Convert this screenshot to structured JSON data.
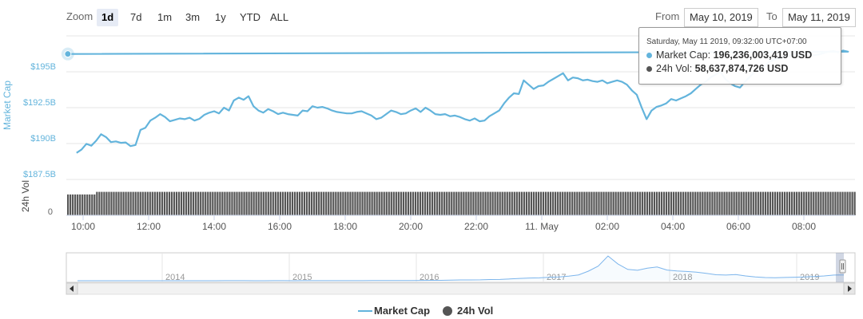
{
  "rangeSelector": {
    "zoom_label": "Zoom",
    "buttons": [
      "1d",
      "7d",
      "1m",
      "3m",
      "1y",
      "YTD",
      "ALL"
    ],
    "active": "1d",
    "from_label": "From",
    "from_value": "May 10, 2019",
    "to_label": "To",
    "to_value": "May 11, 2019"
  },
  "tooltip": {
    "date": "Saturday, May 11 2019, 09:32:00 UTC+07:00",
    "market_cap_label": "Market Cap:",
    "market_cap_value": "196,236,003,419 USD",
    "vol_label": "24h Vol:",
    "vol_value": "58,637,874,726 USD"
  },
  "legend": {
    "market_cap": "Market Cap",
    "vol": "24h Vol"
  },
  "colors": {
    "market_cap": "#63b4dc",
    "vol": "#555555",
    "grid": "#e6e6e6",
    "accent": "#7cb5ec"
  },
  "chart_data": {
    "type": "line",
    "title": "",
    "series": [
      {
        "name": "Market Cap",
        "axis": "market_cap",
        "points": [
          [
            "09:48",
            189.35
          ],
          [
            "09:57",
            189.58
          ],
          [
            "10:06",
            189.98
          ],
          [
            "10:15",
            189.85
          ],
          [
            "10:24",
            190.2
          ],
          [
            "10:33",
            190.65
          ],
          [
            "10:42",
            190.45
          ],
          [
            "10:51",
            190.1
          ],
          [
            "11:00",
            190.15
          ],
          [
            "11:09",
            190.05
          ],
          [
            "11:18",
            190.08
          ],
          [
            "11:27",
            189.82
          ],
          [
            "11:36",
            189.9
          ],
          [
            "11:45",
            190.95
          ],
          [
            "11:54",
            191.1
          ],
          [
            "12:03",
            191.6
          ],
          [
            "12:12",
            191.8
          ],
          [
            "12:21",
            192.05
          ],
          [
            "12:30",
            191.85
          ],
          [
            "12:39",
            191.55
          ],
          [
            "12:48",
            191.65
          ],
          [
            "12:57",
            191.75
          ],
          [
            "13:06",
            191.7
          ],
          [
            "13:15",
            191.8
          ],
          [
            "13:24",
            191.6
          ],
          [
            "13:33",
            191.72
          ],
          [
            "13:42",
            192.0
          ],
          [
            "13:51",
            192.15
          ],
          [
            "14:00",
            192.25
          ],
          [
            "14:09",
            192.1
          ],
          [
            "14:18",
            192.5
          ],
          [
            "14:27",
            192.3
          ],
          [
            "14:36",
            193.0
          ],
          [
            "14:45",
            193.2
          ],
          [
            "14:54",
            193.05
          ],
          [
            "15:03",
            193.3
          ],
          [
            "15:12",
            192.6
          ],
          [
            "15:21",
            192.3
          ],
          [
            "15:30",
            192.15
          ],
          [
            "15:39",
            192.4
          ],
          [
            "15:48",
            192.25
          ],
          [
            "15:57",
            192.05
          ],
          [
            "16:06",
            192.15
          ],
          [
            "16:15",
            192.05
          ],
          [
            "16:24",
            192.0
          ],
          [
            "16:33",
            191.95
          ],
          [
            "16:42",
            192.3
          ],
          [
            "16:51",
            192.25
          ],
          [
            "17:00",
            192.6
          ],
          [
            "17:09",
            192.5
          ],
          [
            "17:18",
            192.55
          ],
          [
            "17:27",
            192.45
          ],
          [
            "17:36",
            192.3
          ],
          [
            "17:45",
            192.2
          ],
          [
            "17:54",
            192.15
          ],
          [
            "18:03",
            192.1
          ],
          [
            "18:12",
            192.1
          ],
          [
            "18:21",
            192.2
          ],
          [
            "18:30",
            192.25
          ],
          [
            "18:39",
            192.1
          ],
          [
            "18:48",
            191.95
          ],
          [
            "18:57",
            191.7
          ],
          [
            "19:06",
            191.8
          ],
          [
            "19:15",
            192.05
          ],
          [
            "19:24",
            192.3
          ],
          [
            "19:33",
            192.2
          ],
          [
            "19:42",
            192.05
          ],
          [
            "19:51",
            192.1
          ],
          [
            "20:00",
            192.3
          ],
          [
            "20:09",
            192.45
          ],
          [
            "20:18",
            192.2
          ],
          [
            "20:27",
            192.5
          ],
          [
            "20:36",
            192.3
          ],
          [
            "20:45",
            192.05
          ],
          [
            "20:54",
            192.0
          ],
          [
            "21:03",
            192.05
          ],
          [
            "21:12",
            191.9
          ],
          [
            "21:21",
            191.95
          ],
          [
            "21:30",
            191.85
          ],
          [
            "21:39",
            191.7
          ],
          [
            "21:48",
            191.6
          ],
          [
            "21:57",
            191.75
          ],
          [
            "22:06",
            191.55
          ],
          [
            "22:15",
            191.6
          ],
          [
            "22:24",
            191.9
          ],
          [
            "22:33",
            192.1
          ],
          [
            "22:42",
            192.3
          ],
          [
            "22:51",
            192.8
          ],
          [
            "23:00",
            193.2
          ],
          [
            "23:09",
            193.5
          ],
          [
            "23:18",
            193.45
          ],
          [
            "23:27",
            194.4
          ],
          [
            "23:36",
            194.1
          ],
          [
            "23:45",
            193.8
          ],
          [
            "23:54",
            194.0
          ],
          [
            "00:03",
            194.05
          ],
          [
            "00:12",
            194.3
          ],
          [
            "00:21",
            194.5
          ],
          [
            "00:30",
            194.7
          ],
          [
            "00:39",
            194.9
          ],
          [
            "00:48",
            194.4
          ],
          [
            "00:57",
            194.6
          ],
          [
            "01:06",
            194.55
          ],
          [
            "01:15",
            194.4
          ],
          [
            "01:24",
            194.45
          ],
          [
            "01:33",
            194.35
          ],
          [
            "01:42",
            194.3
          ],
          [
            "01:51",
            194.4
          ],
          [
            "02:00",
            194.2
          ],
          [
            "02:09",
            194.3
          ],
          [
            "02:18",
            194.4
          ],
          [
            "02:27",
            194.3
          ],
          [
            "02:36",
            194.1
          ],
          [
            "02:45",
            193.7
          ],
          [
            "02:54",
            193.4
          ],
          [
            "03:03",
            192.5
          ],
          [
            "03:12",
            191.7
          ],
          [
            "03:21",
            192.3
          ],
          [
            "03:30",
            192.55
          ],
          [
            "03:39",
            192.65
          ],
          [
            "03:48",
            192.8
          ],
          [
            "03:57",
            193.1
          ],
          [
            "04:06",
            193.0
          ],
          [
            "04:15",
            193.15
          ],
          [
            "04:24",
            193.3
          ],
          [
            "04:33",
            193.5
          ],
          [
            "04:42",
            193.8
          ],
          [
            "04:51",
            194.1
          ],
          [
            "05:00",
            194.3
          ],
          [
            "05:09",
            194.6
          ],
          [
            "05:18",
            194.8
          ],
          [
            "05:27",
            195.0
          ],
          [
            "05:36",
            194.5
          ],
          [
            "05:45",
            194.2
          ],
          [
            "05:54",
            194.0
          ],
          [
            "06:03",
            193.9
          ],
          [
            "06:12",
            194.3
          ],
          [
            "06:21",
            194.65
          ],
          [
            "06:30",
            195.0
          ],
          [
            "06:39",
            195.15
          ],
          [
            "06:48",
            195.4
          ],
          [
            "06:57",
            195.7
          ],
          [
            "07:06",
            195.85
          ],
          [
            "07:15",
            195.95
          ],
          [
            "07:24",
            196.05
          ],
          [
            "07:33",
            196.1
          ],
          [
            "07:42",
            196.2
          ],
          [
            "07:51",
            196.15
          ],
          [
            "08:00",
            196.2
          ],
          [
            "08:09",
            196.3
          ],
          [
            "08:18",
            196.15
          ],
          [
            "08:27",
            196.2
          ],
          [
            "08:36",
            196.3
          ],
          [
            "08:45",
            196.4
          ],
          [
            "08:54",
            196.45
          ],
          [
            "09:03",
            196.35
          ],
          [
            "09:12",
            196.48
          ],
          [
            "09:21",
            196.4
          ],
          [
            "09:32",
            196.24
          ]
        ]
      },
      {
        "name": "24h Vol",
        "axis": "vol",
        "type": "column",
        "level_fraction": 0.83
      }
    ],
    "x_ticks": [
      "10:00",
      "12:00",
      "14:00",
      "16:00",
      "18:00",
      "20:00",
      "22:00",
      "11. May",
      "02:00",
      "04:00",
      "06:00",
      "08:00"
    ],
    "yaxis_market_cap": {
      "label": "Market Cap",
      "ticks": [
        "$187.5B",
        "$190B",
        "$192.5B",
        "$195B"
      ],
      "range_b": [
        187.5,
        197.5
      ]
    },
    "yaxis_vol": {
      "label": "24h Vol",
      "ticks": [
        "0"
      ]
    },
    "navigator": {
      "years": [
        "2014",
        "2015",
        "2016",
        "2017",
        "2018",
        "2019"
      ],
      "series_b": [
        1.3,
        1.0,
        1.2,
        1.3,
        1.2,
        1.0,
        0.9,
        0.9,
        0.9,
        1.0,
        0.9,
        0.8,
        0.9,
        1.0,
        1.2,
        1.4,
        1.6,
        1.4,
        1.2,
        1.3,
        1.5,
        1.4,
        1.3,
        1.4,
        1.6,
        2.0,
        2.3,
        2.7,
        3.3,
        3.8,
        4.5,
        5.0,
        6.3,
        7.5,
        9.3,
        10.8,
        12.5,
        14.0,
        17.5,
        26.5,
        28.0,
        29.0,
        39.0,
        44.0,
        60.0,
        78.0,
        90.0,
        96.0,
        118.0,
        126.0,
        154.0,
        196.0,
        320.0,
        490.0,
        830.0,
        565.0,
        380.0,
        350.0,
        420.0,
        460.0,
        360.0,
        330.0,
        310.0,
        290.0,
        250.0,
        200.0,
        190.0,
        210.0,
        160.0,
        125.0,
        108.0,
        100.0,
        110.0,
        118.0,
        126.0,
        142.0,
        160.0,
        190.0,
        196.0
      ]
    }
  }
}
